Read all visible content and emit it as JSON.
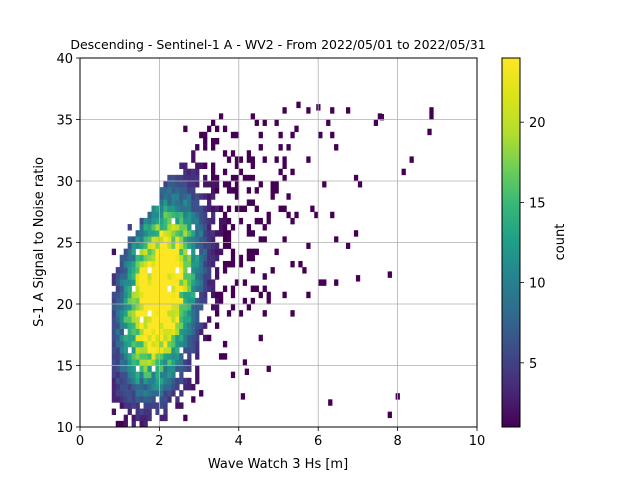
{
  "chart_data": {
    "type": "heatmap",
    "title": "Descending - Sentinel-1 A - WV2 - From 2022/05/01 to 2022/05/31",
    "xlabel": "Wave Watch 3 Hs [m]",
    "ylabel": "S-1 A Signal to Noise ratio",
    "xlim": [
      0,
      10
    ],
    "ylim": [
      10,
      40
    ],
    "xticks": [
      "0",
      "2",
      "4",
      "6",
      "8",
      "10"
    ],
    "yticks": [
      "10",
      "15",
      "20",
      "25",
      "30",
      "35",
      "40"
    ],
    "grid": true,
    "colormap": "viridis",
    "colorbar": {
      "label": "count",
      "range": [
        1,
        24
      ],
      "ticks": [
        "5",
        "10",
        "15",
        "20"
      ]
    },
    "bin_size": {
      "x": 0.1,
      "y": 0.5
    },
    "density_centers": [
      {
        "x": 2.0,
        "y": 21.0,
        "peak_count": 24
      },
      {
        "x": 1.7,
        "y": 16.5,
        "peak_count": 12
      },
      {
        "x": 2.4,
        "y": 25.5,
        "peak_count": 11
      }
    ],
    "extent": {
      "x_min": 0.7,
      "x_max": 8.9,
      "y_min": 10,
      "y_max": 36.5
    },
    "outliers": [
      {
        "x": 7.8,
        "y": 11.0,
        "count": 1
      },
      {
        "x": 8.0,
        "y": 12.5,
        "count": 1
      },
      {
        "x": 6.3,
        "y": 12.0,
        "count": 1
      },
      {
        "x": 4.2,
        "y": 14.5,
        "count": 1
      },
      {
        "x": 4.1,
        "y": 12.5,
        "count": 1
      },
      {
        "x": 7.6,
        "y": 35.2,
        "count": 1
      },
      {
        "x": 8.8,
        "y": 34.0,
        "count": 1
      },
      {
        "x": 5.5,
        "y": 36.2,
        "count": 1
      },
      {
        "x": 6.0,
        "y": 36.0,
        "count": 1
      },
      {
        "x": 7.8,
        "y": 22.4,
        "count": 1
      },
      {
        "x": 7.0,
        "y": 22.1,
        "count": 1
      }
    ]
  },
  "colors": {
    "grid": "#b0b0b0",
    "axis": "#000000",
    "background": "#ffffff"
  }
}
